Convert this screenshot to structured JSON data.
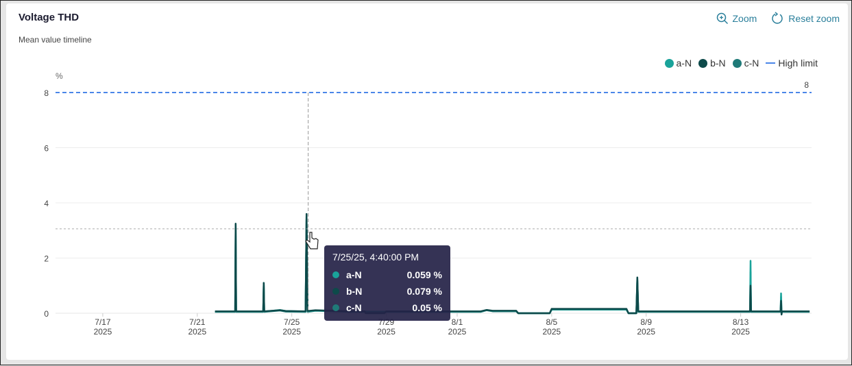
{
  "header": {
    "title": "Voltage THD",
    "subtitle": "Mean value timeline",
    "zoom_label": "Zoom",
    "reset_zoom_label": "Reset zoom",
    "zoom_icon": "zoom-in-icon",
    "reset_icon": "refresh-icon"
  },
  "tooltip": {
    "time": "7/25/25, 4:40:00 PM",
    "rows": [
      {
        "name": "a-N",
        "value": "0.059 %",
        "color": "#1aa39a"
      },
      {
        "name": "b-N",
        "value": "0.079 %",
        "color": "#0d4a4a"
      },
      {
        "name": "c-N",
        "value": "0.05 %",
        "color": "#1f7a78"
      }
    ]
  },
  "chart_data": {
    "type": "line",
    "title": "Voltage THD",
    "subtitle": "Mean value timeline",
    "ylabel": "%",
    "ylim": [
      0,
      8
    ],
    "yticks": [
      "0",
      "2",
      "4",
      "6",
      "8"
    ],
    "xlim": [
      "2025-07-15T00:00",
      "2025-08-16T00:00"
    ],
    "xticks": [
      {
        "date": "2025-07-17",
        "l1": "7/17",
        "l2": "2025"
      },
      {
        "date": "2025-07-21",
        "l1": "7/21",
        "l2": "2025"
      },
      {
        "date": "2025-07-25",
        "l1": "7/25",
        "l2": "2025"
      },
      {
        "date": "2025-07-29",
        "l1": "7/29",
        "l2": "2025"
      },
      {
        "date": "2025-08-01",
        "l1": "8/1",
        "l2": "2025"
      },
      {
        "date": "2025-08-05",
        "l1": "8/5",
        "l2": "2025"
      },
      {
        "date": "2025-08-09",
        "l1": "8/9",
        "l2": "2025"
      },
      {
        "date": "2025-08-13",
        "l1": "8/13",
        "l2": "2025"
      }
    ],
    "grid": true,
    "legend_position": "top-right",
    "high_limit": {
      "name": "High limit",
      "value": 8,
      "label": "8",
      "color": "#4a86e8"
    },
    "crosshair": {
      "x": "2025-07-25T16:40",
      "y": 3.06
    },
    "series": [
      {
        "name": "c-N",
        "color": "#1f7a78",
        "points": [
          [
            "2025-07-21T18:00",
            0.05
          ],
          [
            "2025-07-22T14:30",
            0.05
          ],
          [
            "2025-07-22T15:00",
            3.1
          ],
          [
            "2025-07-22T15:30",
            0.05
          ],
          [
            "2025-07-23T19:00",
            0.05
          ],
          [
            "2025-07-23T19:30",
            1.05
          ],
          [
            "2025-07-23T20:00",
            0.05
          ],
          [
            "2025-07-24T12:00",
            0.1
          ],
          [
            "2025-07-24T18:00",
            0.06
          ],
          [
            "2025-07-25T14:00",
            0.05
          ],
          [
            "2025-07-25T15:00",
            3.4
          ],
          [
            "2025-07-25T16:00",
            0.05
          ],
          [
            "2025-07-26T00:00",
            0.09
          ],
          [
            "2025-07-27T12:00",
            0.05
          ],
          [
            "2025-08-02T00:00",
            0.05
          ],
          [
            "2025-08-02T06:00",
            0.11
          ],
          [
            "2025-08-02T12:00",
            0.07
          ],
          [
            "2025-08-03T12:00",
            0.07
          ],
          [
            "2025-08-03T14:00",
            0.0
          ],
          [
            "2025-08-04T22:00",
            0.0
          ],
          [
            "2025-08-05T00:00",
            0.13
          ],
          [
            "2025-08-08T04:00",
            0.13
          ],
          [
            "2025-08-08T06:00",
            0.0
          ],
          [
            "2025-08-08T14:00",
            0.0
          ],
          [
            "2025-08-08T15:00",
            1.2
          ],
          [
            "2025-08-08T16:00",
            0.05
          ],
          [
            "2025-08-13T09:30",
            0.05
          ],
          [
            "2025-08-13T10:00",
            1.5
          ],
          [
            "2025-08-13T10:30",
            0.05
          ],
          [
            "2025-08-14T16:30",
            0.05
          ],
          [
            "2025-08-14T17:00",
            0.6
          ],
          [
            "2025-08-14T17:30",
            0.05
          ],
          [
            "2025-08-15T22:00",
            0.05
          ]
        ]
      },
      {
        "name": "a-N",
        "color": "#1aa39a",
        "points": [
          [
            "2025-07-21T18:00",
            0.06
          ],
          [
            "2025-07-22T14:30",
            0.06
          ],
          [
            "2025-07-22T15:00",
            3.2
          ],
          [
            "2025-07-22T15:30",
            0.06
          ],
          [
            "2025-07-23T19:00",
            0.06
          ],
          [
            "2025-07-23T19:30",
            1.1
          ],
          [
            "2025-07-23T20:00",
            0.06
          ],
          [
            "2025-07-24T12:00",
            0.12
          ],
          [
            "2025-07-24T18:00",
            0.08
          ],
          [
            "2025-07-25T14:00",
            0.06
          ],
          [
            "2025-07-25T15:00",
            3.5
          ],
          [
            "2025-07-25T16:00",
            0.06
          ],
          [
            "2025-07-26T00:00",
            0.1
          ],
          [
            "2025-07-27T12:00",
            0.06
          ],
          [
            "2025-08-02T00:00",
            0.06
          ],
          [
            "2025-08-02T06:00",
            0.12
          ],
          [
            "2025-08-02T12:00",
            0.08
          ],
          [
            "2025-08-03T12:00",
            0.08
          ],
          [
            "2025-08-03T14:00",
            0.0
          ],
          [
            "2025-08-04T22:00",
            0.0
          ],
          [
            "2025-08-05T00:00",
            0.14
          ],
          [
            "2025-08-08T04:00",
            0.14
          ],
          [
            "2025-08-08T06:00",
            0.0
          ],
          [
            "2025-08-08T14:00",
            0.0
          ],
          [
            "2025-08-08T15:00",
            1.25
          ],
          [
            "2025-08-08T16:00",
            0.06
          ],
          [
            "2025-08-13T09:30",
            0.06
          ],
          [
            "2025-08-13T10:00",
            1.9
          ],
          [
            "2025-08-13T10:30",
            0.06
          ],
          [
            "2025-08-14T16:30",
            0.06
          ],
          [
            "2025-08-14T17:00",
            0.72
          ],
          [
            "2025-08-14T17:30",
            0.06
          ],
          [
            "2025-08-15T22:00",
            0.06
          ]
        ]
      },
      {
        "name": "b-N",
        "color": "#0d4a4a",
        "points": [
          [
            "2025-07-21T18:00",
            0.07
          ],
          [
            "2025-07-22T14:30",
            0.07
          ],
          [
            "2025-07-22T15:00",
            3.25
          ],
          [
            "2025-07-22T15:30",
            0.07
          ],
          [
            "2025-07-23T19:00",
            0.07
          ],
          [
            "2025-07-23T19:30",
            1.1
          ],
          [
            "2025-07-23T20:00",
            0.07
          ],
          [
            "2025-07-24T12:00",
            0.11
          ],
          [
            "2025-07-24T18:00",
            0.08
          ],
          [
            "2025-07-25T14:00",
            0.07
          ],
          [
            "2025-07-25T15:00",
            3.6
          ],
          [
            "2025-07-25T16:00",
            0.079
          ],
          [
            "2025-07-26T00:00",
            0.11
          ],
          [
            "2025-07-27T12:00",
            0.07
          ],
          [
            "2025-07-28T02:00",
            0.07
          ],
          [
            "2025-07-28T03:00",
            0.0
          ],
          [
            "2025-07-28T22:00",
            0.0
          ],
          [
            "2025-07-29T00:00",
            0.07
          ],
          [
            "2025-08-02T00:00",
            0.07
          ],
          [
            "2025-08-02T06:00",
            0.12
          ],
          [
            "2025-08-02T12:00",
            0.09
          ],
          [
            "2025-08-03T12:00",
            0.09
          ],
          [
            "2025-08-03T14:00",
            0.0
          ],
          [
            "2025-08-04T22:00",
            0.0
          ],
          [
            "2025-08-05T00:00",
            0.16
          ],
          [
            "2025-08-08T04:00",
            0.16
          ],
          [
            "2025-08-08T06:00",
            0.0
          ],
          [
            "2025-08-08T14:00",
            0.0
          ],
          [
            "2025-08-08T15:00",
            1.3
          ],
          [
            "2025-08-08T16:00",
            0.07
          ],
          [
            "2025-08-13T09:30",
            0.07
          ],
          [
            "2025-08-13T10:00",
            1.0
          ],
          [
            "2025-08-13T10:30",
            0.07
          ],
          [
            "2025-08-14T16:30",
            0.07
          ],
          [
            "2025-08-14T17:00",
            0.45
          ],
          [
            "2025-08-14T17:30",
            -0.05
          ],
          [
            "2025-08-14T18:00",
            0.07
          ],
          [
            "2025-08-15T22:00",
            0.07
          ]
        ]
      }
    ]
  },
  "legend": [
    {
      "name": "a-N",
      "color": "#1aa39a"
    },
    {
      "name": "b-N",
      "color": "#0d4a4a"
    },
    {
      "name": "c-N",
      "color": "#1f7a78"
    }
  ]
}
